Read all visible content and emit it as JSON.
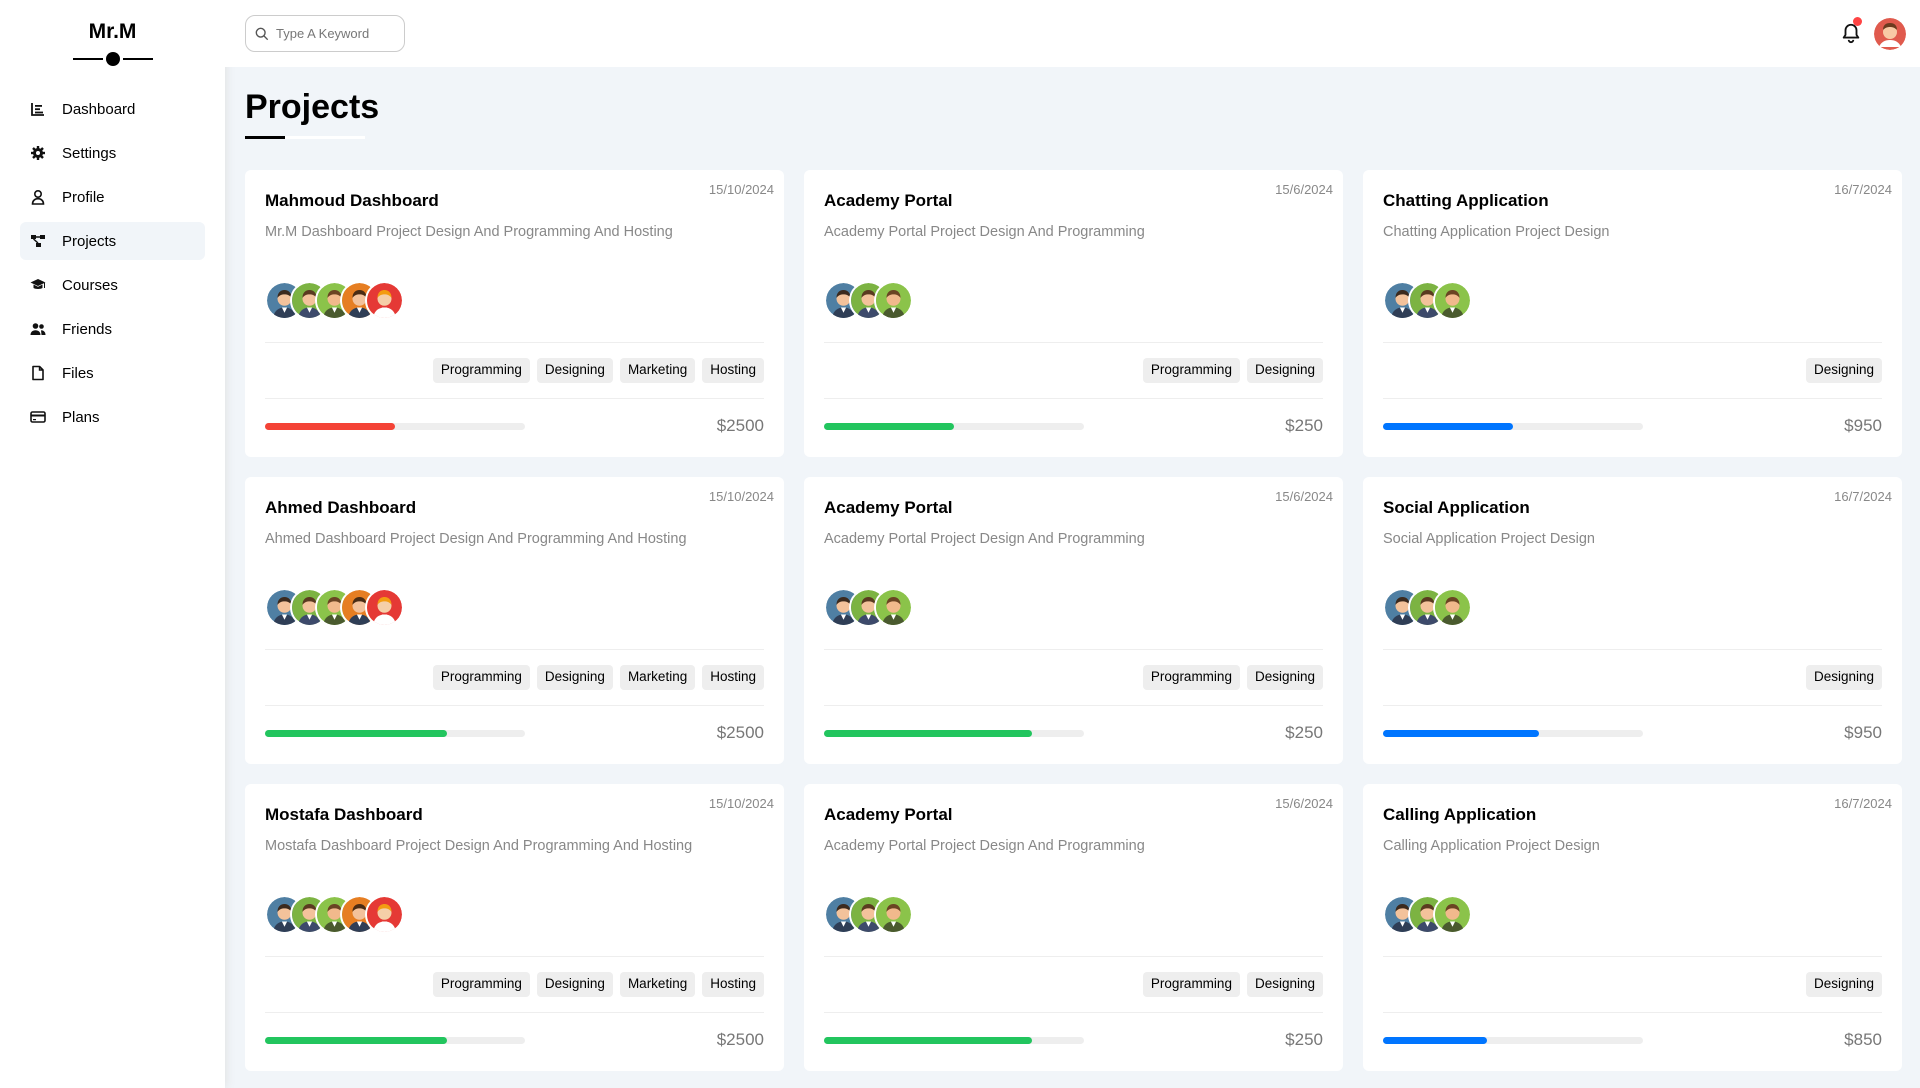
{
  "brand": "Mr.M",
  "sidebar": {
    "items": [
      {
        "label": "Dashboard",
        "icon": "chart-icon"
      },
      {
        "label": "Settings",
        "icon": "gear-icon"
      },
      {
        "label": "Profile",
        "icon": "user-icon"
      },
      {
        "label": "Projects",
        "icon": "diagram-project-icon",
        "active": true
      },
      {
        "label": "Courses",
        "icon": "graduation-cap-icon"
      },
      {
        "label": "Friends",
        "icon": "users-icon"
      },
      {
        "label": "Files",
        "icon": "file-icon"
      },
      {
        "label": "Plans",
        "icon": "credit-card-icon"
      }
    ]
  },
  "header": {
    "search_placeholder": "Type A Keyword",
    "notification_icon": "bell-icon",
    "has_notification": true
  },
  "page_title": "Projects",
  "colors": {
    "red": "#f44336",
    "green": "#22c55e",
    "blue": "#0075ff"
  },
  "projects": [
    {
      "title": "Mahmoud Dashboard",
      "date": "15/10/2024",
      "desc": "Mr.M Dashboard Project Design And Programming And Hosting",
      "team": 5,
      "tags": [
        "Programming",
        "Designing",
        "Marketing",
        "Hosting"
      ],
      "progress": 0.5,
      "color": "#f44336",
      "price": "$2500"
    },
    {
      "title": "Academy Portal",
      "date": "15/6/2024",
      "desc": "Academy Portal Project Design And Programming",
      "team": 3,
      "tags": [
        "Programming",
        "Designing"
      ],
      "progress": 0.5,
      "color": "#22c55e",
      "price": "$250"
    },
    {
      "title": "Chatting Application",
      "date": "16/7/2024",
      "desc": "Chatting Application Project Design",
      "team": 3,
      "tags": [
        "Designing"
      ],
      "progress": 0.5,
      "color": "#0075ff",
      "price": "$950"
    },
    {
      "title": "Ahmed Dashboard",
      "date": "15/10/2024",
      "desc": "Ahmed Dashboard Project Design And Programming And Hosting",
      "team": 5,
      "tags": [
        "Programming",
        "Designing",
        "Marketing",
        "Hosting"
      ],
      "progress": 0.7,
      "color": "#22c55e",
      "price": "$2500"
    },
    {
      "title": "Academy Portal",
      "date": "15/6/2024",
      "desc": "Academy Portal Project Design And Programming",
      "team": 3,
      "tags": [
        "Programming",
        "Designing"
      ],
      "progress": 0.8,
      "color": "#22c55e",
      "price": "$250"
    },
    {
      "title": "Social Application",
      "date": "16/7/2024",
      "desc": "Social Application Project Design",
      "team": 3,
      "tags": [
        "Designing"
      ],
      "progress": 0.6,
      "color": "#0075ff",
      "price": "$950"
    },
    {
      "title": "Mostafa Dashboard",
      "date": "15/10/2024",
      "desc": "Mostafa Dashboard Project Design And Programming And Hosting",
      "team": 5,
      "tags": [
        "Programming",
        "Designing",
        "Marketing",
        "Hosting"
      ],
      "progress": 0.7,
      "color": "#22c55e",
      "price": "$2500"
    },
    {
      "title": "Academy Portal",
      "date": "15/6/2024",
      "desc": "Academy Portal Project Design And Programming",
      "team": 3,
      "tags": [
        "Programming",
        "Designing"
      ],
      "progress": 0.8,
      "color": "#22c55e",
      "price": "$250"
    },
    {
      "title": "Calling Application",
      "date": "16/7/2024",
      "desc": "Calling Application Project Design",
      "team": 3,
      "tags": [
        "Designing"
      ],
      "progress": 0.4,
      "color": "#0075ff",
      "price": "$850"
    }
  ]
}
